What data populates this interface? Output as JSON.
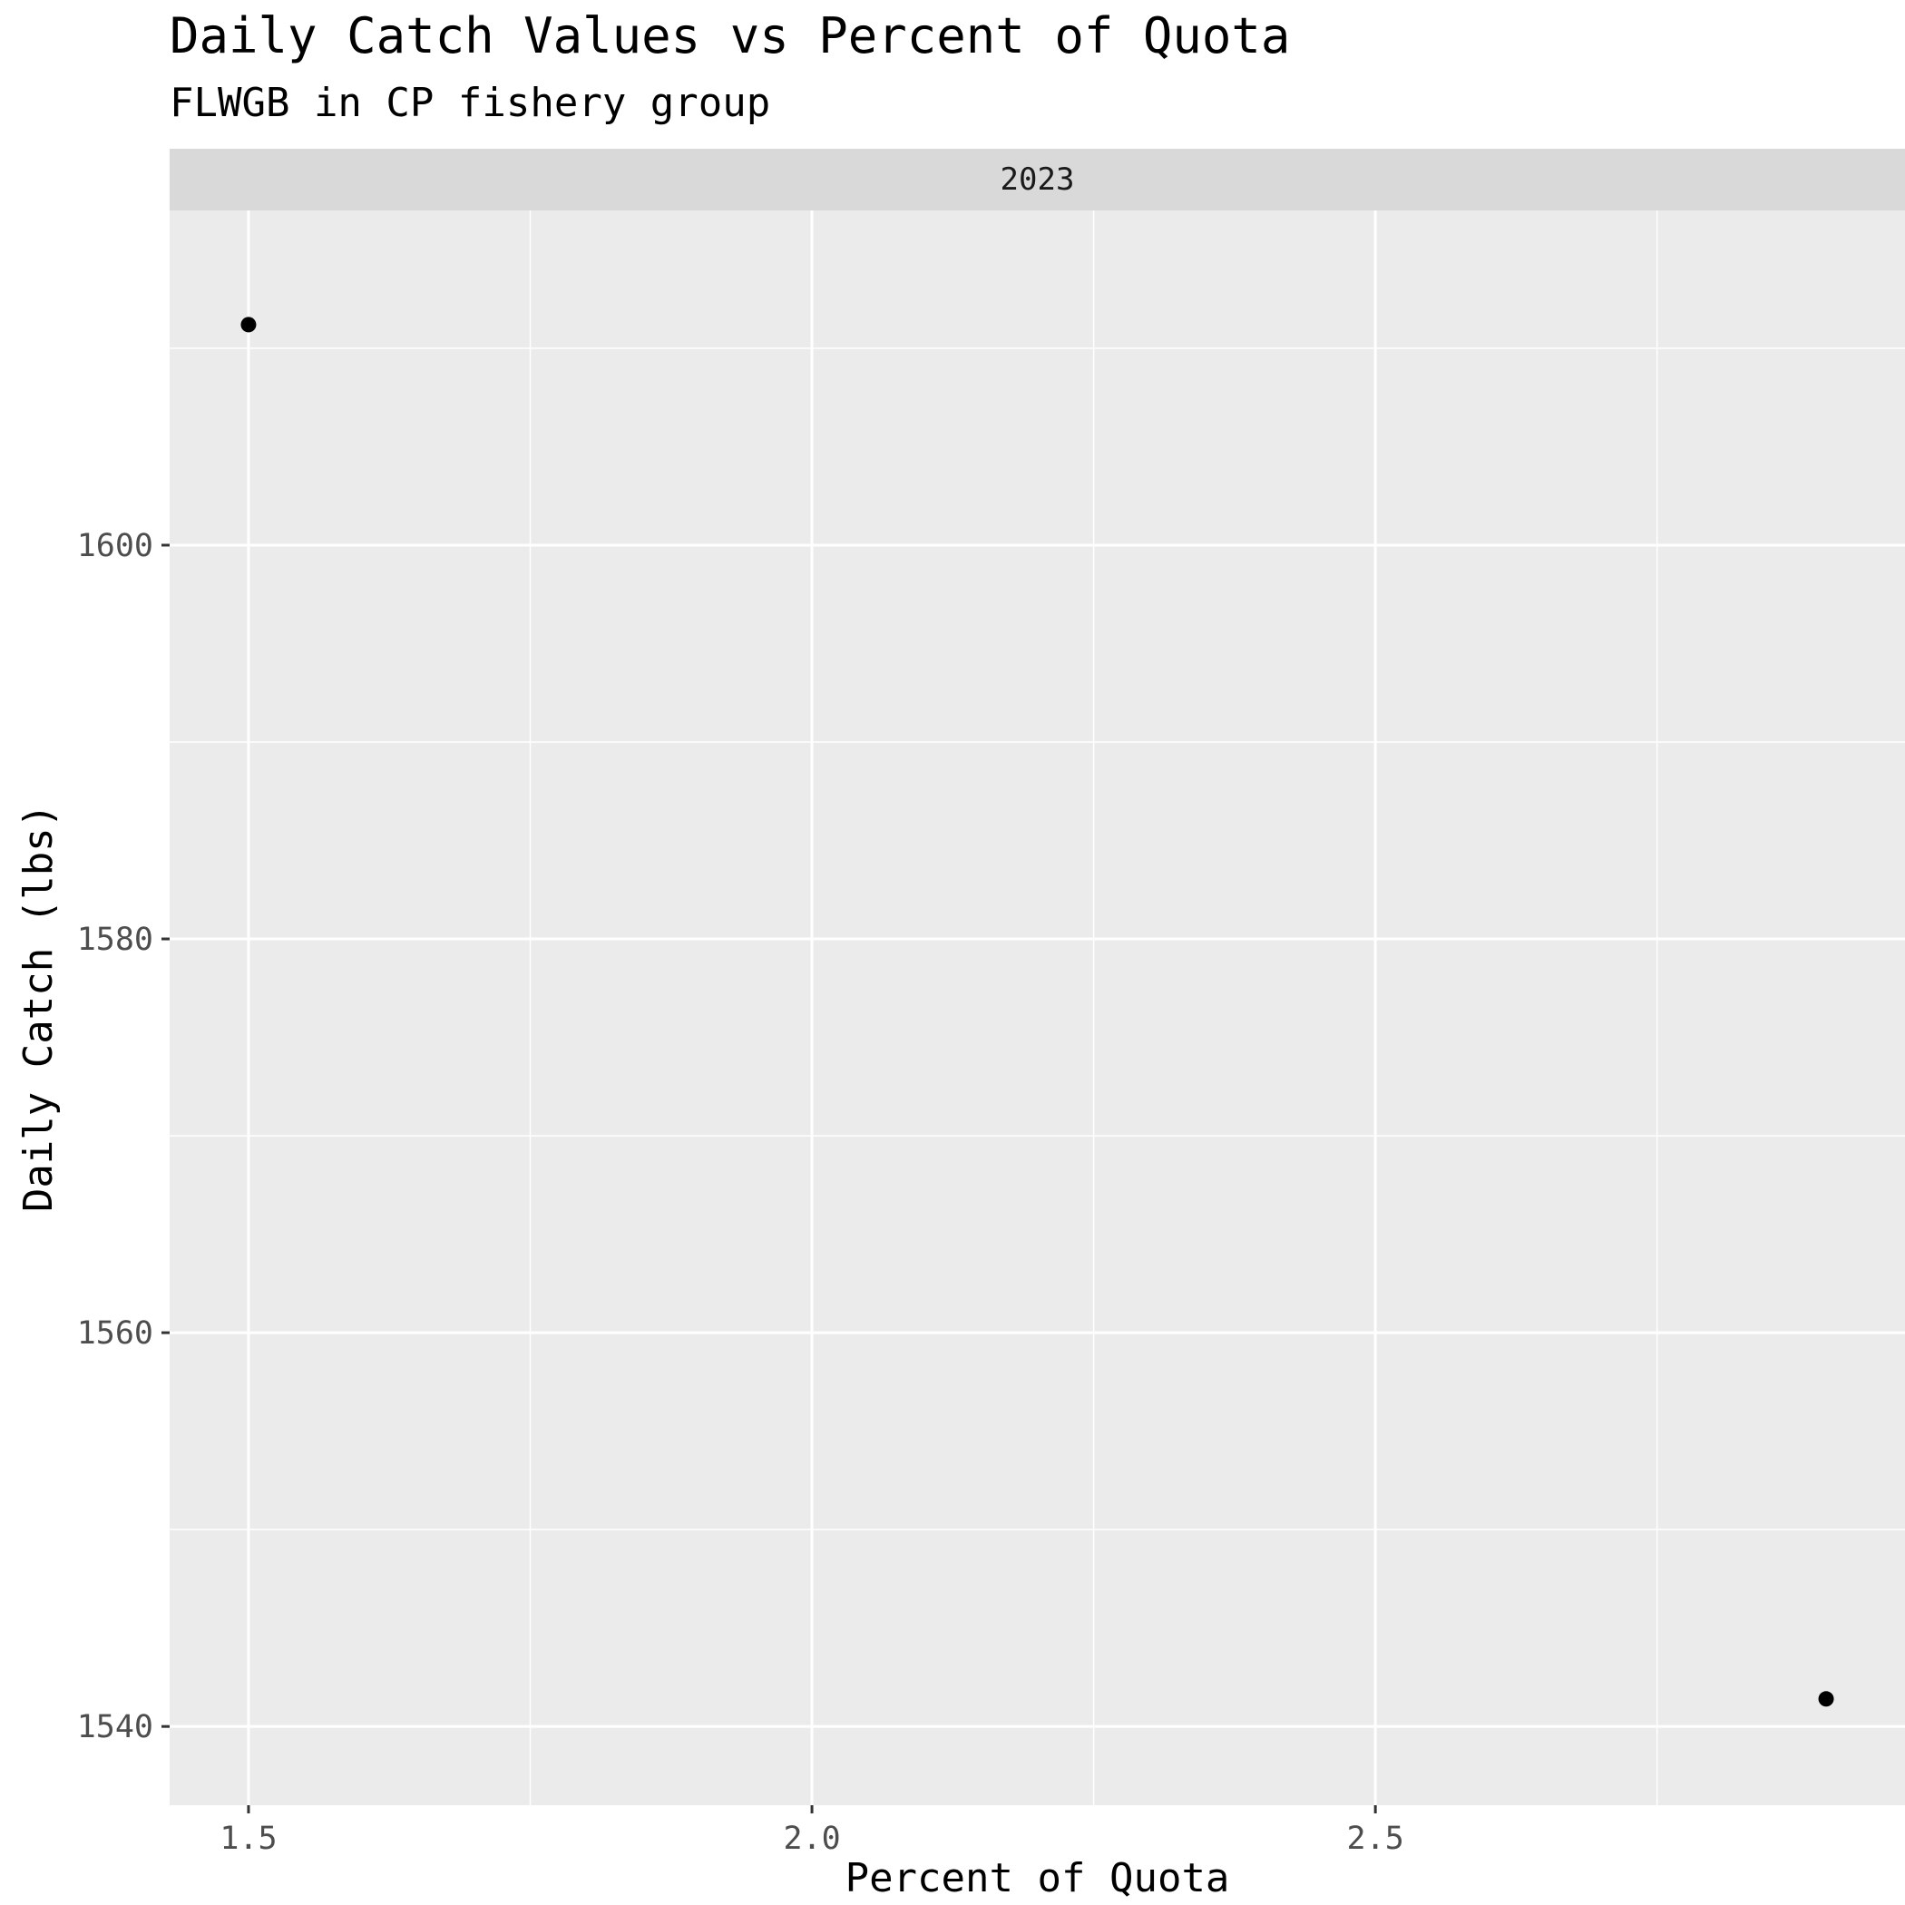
{
  "chart_data": {
    "type": "scatter",
    "title": "Daily Catch Values vs Percent of Quota",
    "subtitle": "FLWGB in CP fishery group",
    "facet_label": "2023",
    "xlabel": "Percent of Quota",
    "ylabel": "Daily Catch (lbs)",
    "xlim": [
      1.43,
      2.97
    ],
    "ylim": [
      1536.0,
      1617.0
    ],
    "x_ticks": [
      1.5,
      2.0,
      2.5
    ],
    "x_tick_labels": [
      "1.5",
      "2.0",
      "2.5"
    ],
    "x_minor_ticks": [
      1.75,
      2.25,
      2.75
    ],
    "y_ticks": [
      1540,
      1560,
      1580,
      1600
    ],
    "y_tick_labels": [
      "1540",
      "1560",
      "1580",
      "1600"
    ],
    "y_minor_ticks": [
      1550,
      1570,
      1590,
      1610
    ],
    "grid": true,
    "legend": "none",
    "points": [
      {
        "x": 1.5,
        "y": 1611.2
      },
      {
        "x": 2.9,
        "y": 1541.4
      }
    ],
    "colors": {
      "panel_background": "#ebebeb",
      "strip_background": "#d9d9d9",
      "grid_line": "#ffffff",
      "point": "#000000",
      "tick": "#333333"
    }
  }
}
